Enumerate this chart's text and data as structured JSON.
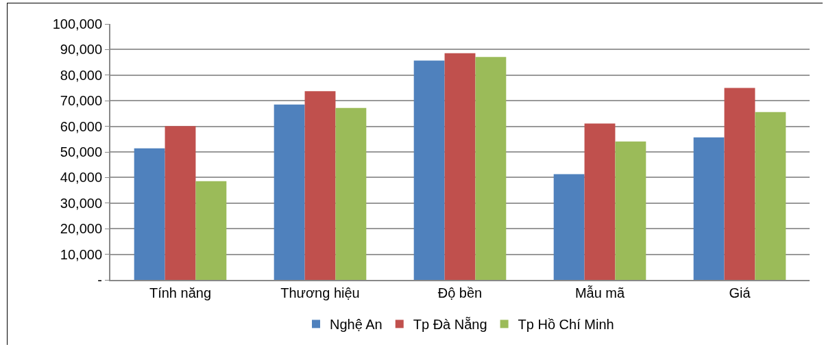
{
  "chart_data": {
    "type": "bar",
    "categories": [
      "Tính năng",
      "Thương hiệu",
      "Độ bền",
      "Mẫu mã",
      "Giá"
    ],
    "series": [
      {
        "name": "Nghệ An",
        "color": "#4f81bd",
        "values": [
          51400,
          68500,
          85700,
          41300,
          55700
        ]
      },
      {
        "name": "Tp Đà Nẵng",
        "color": "#c0504d",
        "values": [
          60100,
          73700,
          88600,
          61100,
          75000
        ]
      },
      {
        "name": "Tp Hồ Chí Minh",
        "color": "#9bbb59",
        "values": [
          38600,
          67200,
          87100,
          54100,
          65600
        ]
      }
    ],
    "ylim": [
      0,
      100000
    ],
    "yticks": [
      {
        "value": 0,
        "label": "-"
      },
      {
        "value": 10000,
        "label": "10,000"
      },
      {
        "value": 20000,
        "label": "20,000"
      },
      {
        "value": 30000,
        "label": "30,000"
      },
      {
        "value": 40000,
        "label": "40,000"
      },
      {
        "value": 50000,
        "label": "50,000"
      },
      {
        "value": 60000,
        "label": "60,000"
      },
      {
        "value": 70000,
        "label": "70,000"
      },
      {
        "value": 80000,
        "label": "80,000"
      },
      {
        "value": 90000,
        "label": "90,000"
      },
      {
        "value": 100000,
        "label": "100,000"
      }
    ],
    "grid": "y",
    "legend": "bottom"
  }
}
